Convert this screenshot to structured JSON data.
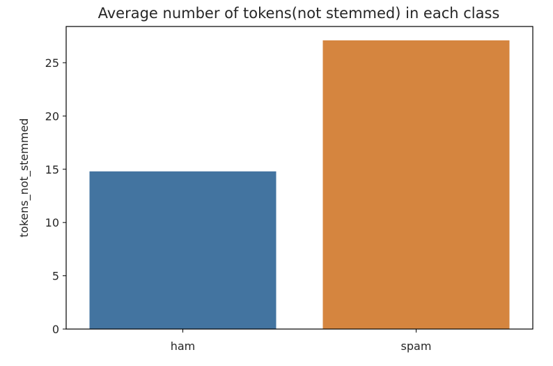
{
  "chart_data": {
    "type": "bar",
    "title": "Average number of tokens(not stemmed) in each class",
    "xlabel": "",
    "ylabel": "tokens_not_stemmed",
    "categories": [
      "ham",
      "spam"
    ],
    "values": [
      14.8,
      27.1
    ],
    "colors": [
      "#4374a0",
      "#d5853f"
    ],
    "ylim": [
      0,
      28.4
    ],
    "yticks": [
      0,
      5,
      10,
      15,
      20,
      25
    ],
    "grid": false,
    "legend": "none"
  }
}
